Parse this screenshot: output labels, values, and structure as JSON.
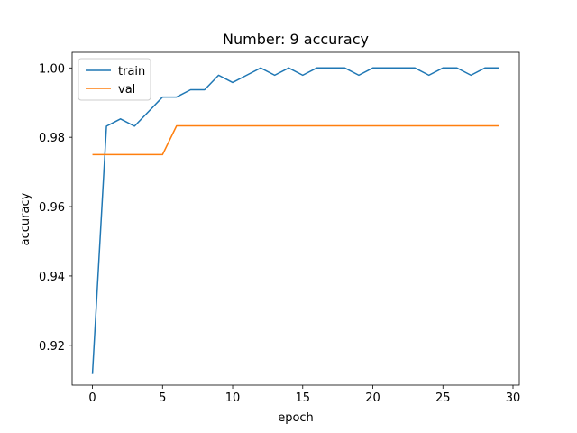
{
  "chart_data": {
    "type": "line",
    "title": "Number: 9 accuracy",
    "xlabel": "epoch",
    "ylabel": "accuracy",
    "xlim": [
      -1.45,
      30.45
    ],
    "ylim": [
      0.9085,
      1.0045
    ],
    "xticks": [
      0,
      5,
      10,
      15,
      20,
      25,
      30
    ],
    "yticks": [
      0.92,
      0.94,
      0.96,
      0.98,
      1.0
    ],
    "ytick_labels": [
      "0.92",
      "0.94",
      "0.96",
      "0.98",
      "1.00"
    ],
    "legend_position": "upper-left",
    "grid": false,
    "x": [
      0,
      1,
      2,
      3,
      4,
      5,
      6,
      7,
      8,
      9,
      10,
      11,
      12,
      13,
      14,
      15,
      16,
      17,
      18,
      19,
      20,
      21,
      22,
      23,
      24,
      25,
      26,
      27,
      28,
      29
    ],
    "series": [
      {
        "name": "train",
        "color": "#1f77b4",
        "values": [
          0.9117,
          0.9832,
          0.9853,
          0.9832,
          0.9874,
          0.9916,
          0.9916,
          0.9937,
          0.9937,
          0.9979,
          0.9958,
          0.9979,
          1.0,
          0.9979,
          1.0,
          0.9979,
          1.0,
          1.0,
          1.0,
          0.9979,
          1.0,
          1.0,
          1.0,
          1.0,
          0.9979,
          1.0,
          1.0,
          0.9979,
          1.0,
          1.0
        ]
      },
      {
        "name": "val",
        "color": "#ff7f0e",
        "values": [
          0.975,
          0.975,
          0.975,
          0.975,
          0.975,
          0.975,
          0.9833,
          0.9833,
          0.9833,
          0.9833,
          0.9833,
          0.9833,
          0.9833,
          0.9833,
          0.9833,
          0.9833,
          0.9833,
          0.9833,
          0.9833,
          0.9833,
          0.9833,
          0.9833,
          0.9833,
          0.9833,
          0.9833,
          0.9833,
          0.9833,
          0.9833,
          0.9833,
          0.9833
        ]
      }
    ]
  }
}
